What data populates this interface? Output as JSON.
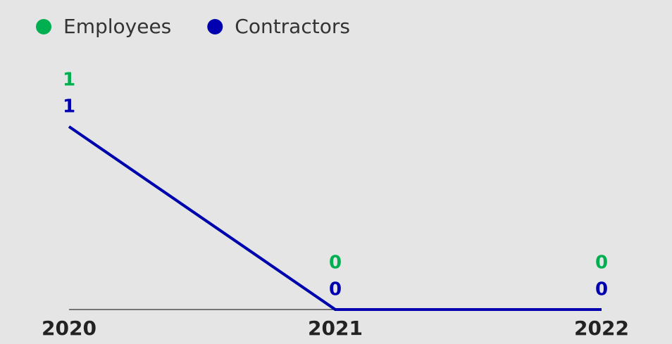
{
  "chart_data": {
    "type": "line",
    "categories": [
      "2020",
      "2021",
      "2022"
    ],
    "series": [
      {
        "name": "Employees",
        "color": "#00b050",
        "values": [
          1,
          0,
          0
        ]
      },
      {
        "name": "Contractors",
        "color": "#0000b0",
        "values": [
          1,
          0,
          0
        ]
      }
    ],
    "legend": "top-left"
  }
}
